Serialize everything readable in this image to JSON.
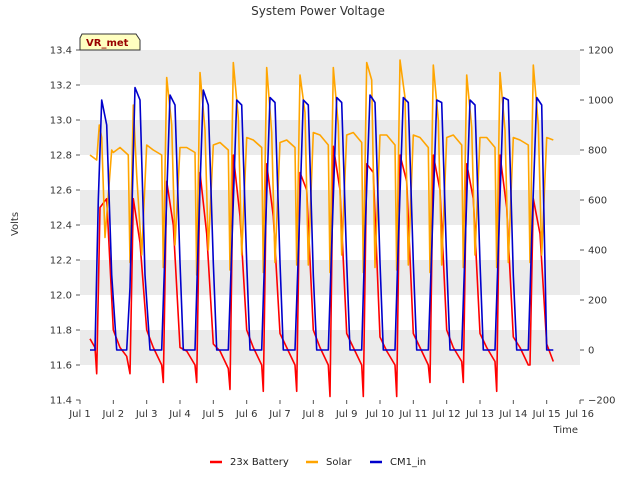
{
  "chart_data": {
    "type": "line",
    "title": "System Power Voltage",
    "badge": "VR_met",
    "xlabel": "Time",
    "ylabel": "Volts",
    "ylabel_right": "",
    "x_ticks": [
      "Jul 1",
      "Jul 2",
      "Jul 3",
      "Jul 4",
      "Jul 5",
      "Jul 6",
      "Jul 7",
      "Jul 8",
      "Jul 9",
      "Jul 10",
      "Jul 11",
      "Jul 12",
      "Jul 13",
      "Jul 14",
      "Jul 15",
      "Jul 16"
    ],
    "xlim": [
      1,
      16
    ],
    "ylim_left": [
      11.4,
      13.4
    ],
    "yticks_left": [
      "11.4",
      "11.6",
      "11.8",
      "12.0",
      "12.2",
      "12.4",
      "12.6",
      "12.8",
      "13.0",
      "13.2",
      "13.4"
    ],
    "ylim_right": [
      -200,
      1200
    ],
    "yticks_right": [
      "−200",
      "0",
      "200",
      "400",
      "600",
      "800",
      "1000",
      "1200"
    ],
    "grid": "horizontal bands",
    "legend_position": "bottom-center",
    "colors": {
      "battery": "#ff0000",
      "solar": "#ffa500",
      "cm1": "#0000cc",
      "band": "#ebebeb",
      "badge_bg": "#ffffc0"
    },
    "series": [
      {
        "name": "23x Battery",
        "axis": "left",
        "color": "#ff0000",
        "x": [
          1.3,
          1.45,
          1.5,
          1.6,
          1.8,
          2.0,
          2.2,
          2.4,
          2.5,
          2.6,
          2.8,
          3.0,
          3.2,
          3.45,
          3.5,
          3.6,
          3.8,
          4.0,
          4.2,
          4.45,
          4.5,
          4.6,
          4.8,
          5.0,
          5.2,
          5.45,
          5.5,
          5.6,
          5.8,
          6.0,
          6.2,
          6.45,
          6.5,
          6.6,
          6.8,
          7.0,
          7.2,
          7.45,
          7.5,
          7.6,
          7.8,
          8.0,
          8.2,
          8.45,
          8.5,
          8.6,
          8.8,
          9.0,
          9.2,
          9.45,
          9.5,
          9.6,
          9.8,
          10.0,
          10.2,
          10.45,
          10.5,
          10.6,
          10.8,
          11.0,
          11.2,
          11.45,
          11.5,
          11.6,
          11.8,
          12.0,
          12.2,
          12.45,
          12.5,
          12.6,
          12.8,
          13.0,
          13.2,
          13.45,
          13.5,
          13.6,
          13.8,
          14.0,
          14.2,
          14.45,
          14.5,
          14.6,
          14.8,
          15.0,
          15.2
        ],
        "y": [
          11.75,
          11.7,
          11.55,
          12.5,
          12.55,
          11.8,
          11.7,
          11.65,
          11.55,
          12.55,
          12.3,
          11.8,
          11.7,
          11.6,
          11.5,
          12.65,
          12.4,
          11.7,
          11.68,
          11.6,
          11.5,
          12.7,
          12.35,
          11.72,
          11.68,
          11.58,
          11.46,
          12.8,
          12.45,
          11.8,
          11.7,
          11.6,
          11.45,
          12.75,
          12.45,
          11.78,
          11.7,
          11.6,
          11.45,
          12.7,
          12.6,
          11.8,
          11.7,
          11.6,
          11.42,
          12.85,
          12.6,
          11.78,
          11.7,
          11.6,
          11.42,
          12.75,
          12.7,
          11.76,
          11.68,
          11.6,
          11.42,
          12.8,
          12.65,
          11.78,
          11.7,
          11.6,
          11.5,
          12.8,
          12.6,
          11.8,
          11.7,
          11.62,
          11.5,
          12.75,
          12.55,
          11.78,
          11.7,
          11.62,
          11.45,
          12.8,
          12.5,
          11.76,
          11.7,
          11.6,
          11.6,
          12.55,
          12.35,
          11.72,
          11.62
        ]
      },
      {
        "name": "Solar",
        "axis": "right",
        "color": "#ffa500",
        "x": [
          1.3,
          1.5,
          1.58,
          1.65,
          1.75,
          1.85,
          1.95,
          2.0,
          2.2,
          2.45,
          2.5,
          2.6,
          2.7,
          2.85,
          3.0,
          3.2,
          3.45,
          3.5,
          3.6,
          3.75,
          3.85,
          4.0,
          4.2,
          4.45,
          4.5,
          4.6,
          4.75,
          4.85,
          5.0,
          5.2,
          5.45,
          5.5,
          5.6,
          5.75,
          5.85,
          6.0,
          6.2,
          6.45,
          6.5,
          6.6,
          6.75,
          6.85,
          7.0,
          7.2,
          7.45,
          7.5,
          7.6,
          7.75,
          7.85,
          8.0,
          8.2,
          8.45,
          8.5,
          8.6,
          8.75,
          8.85,
          9.0,
          9.2,
          9.45,
          9.5,
          9.6,
          9.75,
          9.85,
          10.0,
          10.2,
          10.45,
          10.5,
          10.6,
          10.75,
          10.85,
          11.0,
          11.2,
          11.45,
          11.5,
          11.6,
          11.75,
          11.85,
          12.0,
          12.2,
          12.45,
          12.5,
          12.6,
          12.75,
          12.85,
          13.0,
          13.2,
          13.45,
          13.5,
          13.6,
          13.75,
          13.85,
          14.0,
          14.2,
          14.45,
          14.5,
          14.6,
          14.75,
          14.85,
          15.0,
          15.2
        ],
        "y": [
          780,
          760,
          900,
          850,
          450,
          620,
          800,
          790,
          810,
          780,
          350,
          980,
          700,
          380,
          820,
          800,
          780,
          330,
          1090,
          900,
          420,
          810,
          810,
          790,
          300,
          1110,
          880,
          400,
          820,
          830,
          800,
          320,
          1150,
          930,
          380,
          850,
          840,
          810,
          310,
          1130,
          870,
          350,
          830,
          840,
          810,
          340,
          1100,
          950,
          340,
          870,
          860,
          820,
          310,
          1130,
          900,
          380,
          860,
          870,
          830,
          310,
          1150,
          1080,
          330,
          860,
          860,
          820,
          320,
          1160,
          1010,
          340,
          860,
          850,
          810,
          310,
          1140,
          920,
          340,
          850,
          860,
          820,
          330,
          1100,
          890,
          380,
          850,
          850,
          810,
          330,
          1110,
          880,
          350,
          850,
          840,
          820,
          350,
          1140,
          900,
          380,
          850,
          840
        ]
      },
      {
        "name": "CM1_in",
        "axis": "right",
        "color": "#0000cc",
        "x": [
          1.3,
          1.45,
          1.55,
          1.65,
          1.8,
          1.95,
          2.1,
          2.4,
          2.5,
          2.65,
          2.8,
          2.95,
          3.1,
          3.45,
          3.55,
          3.7,
          3.85,
          4.0,
          4.1,
          4.45,
          4.55,
          4.7,
          4.85,
          5.0,
          5.1,
          5.45,
          5.55,
          5.7,
          5.85,
          6.0,
          6.1,
          6.45,
          6.55,
          6.7,
          6.85,
          7.0,
          7.1,
          7.45,
          7.55,
          7.7,
          7.85,
          8.0,
          8.1,
          8.45,
          8.55,
          8.7,
          8.85,
          9.0,
          9.1,
          9.45,
          9.55,
          9.7,
          9.85,
          10.0,
          10.1,
          10.45,
          10.55,
          10.7,
          10.85,
          11.0,
          11.1,
          11.45,
          11.55,
          11.7,
          11.85,
          12.0,
          12.1,
          12.45,
          12.55,
          12.7,
          12.85,
          13.0,
          13.1,
          13.45,
          13.55,
          13.7,
          13.85,
          14.0,
          14.1,
          14.45,
          14.55,
          14.7,
          14.85,
          15.0,
          15.2
        ],
        "y": [
          0,
          0,
          600,
          1000,
          900,
          300,
          0,
          0,
          250,
          1050,
          1000,
          300,
          0,
          0,
          400,
          1020,
          980,
          350,
          0,
          0,
          450,
          1040,
          980,
          350,
          0,
          0,
          400,
          1000,
          980,
          350,
          0,
          0,
          420,
          1010,
          990,
          350,
          0,
          0,
          380,
          1000,
          980,
          300,
          0,
          0,
          420,
          1010,
          990,
          350,
          0,
          0,
          460,
          1020,
          990,
          350,
          0,
          0,
          430,
          1010,
          990,
          350,
          0,
          0,
          400,
          1000,
          990,
          350,
          0,
          0,
          400,
          1000,
          980,
          350,
          0,
          0,
          400,
          1010,
          1000,
          300,
          0,
          0,
          450,
          1010,
          980,
          0,
          0
        ]
      }
    ]
  }
}
